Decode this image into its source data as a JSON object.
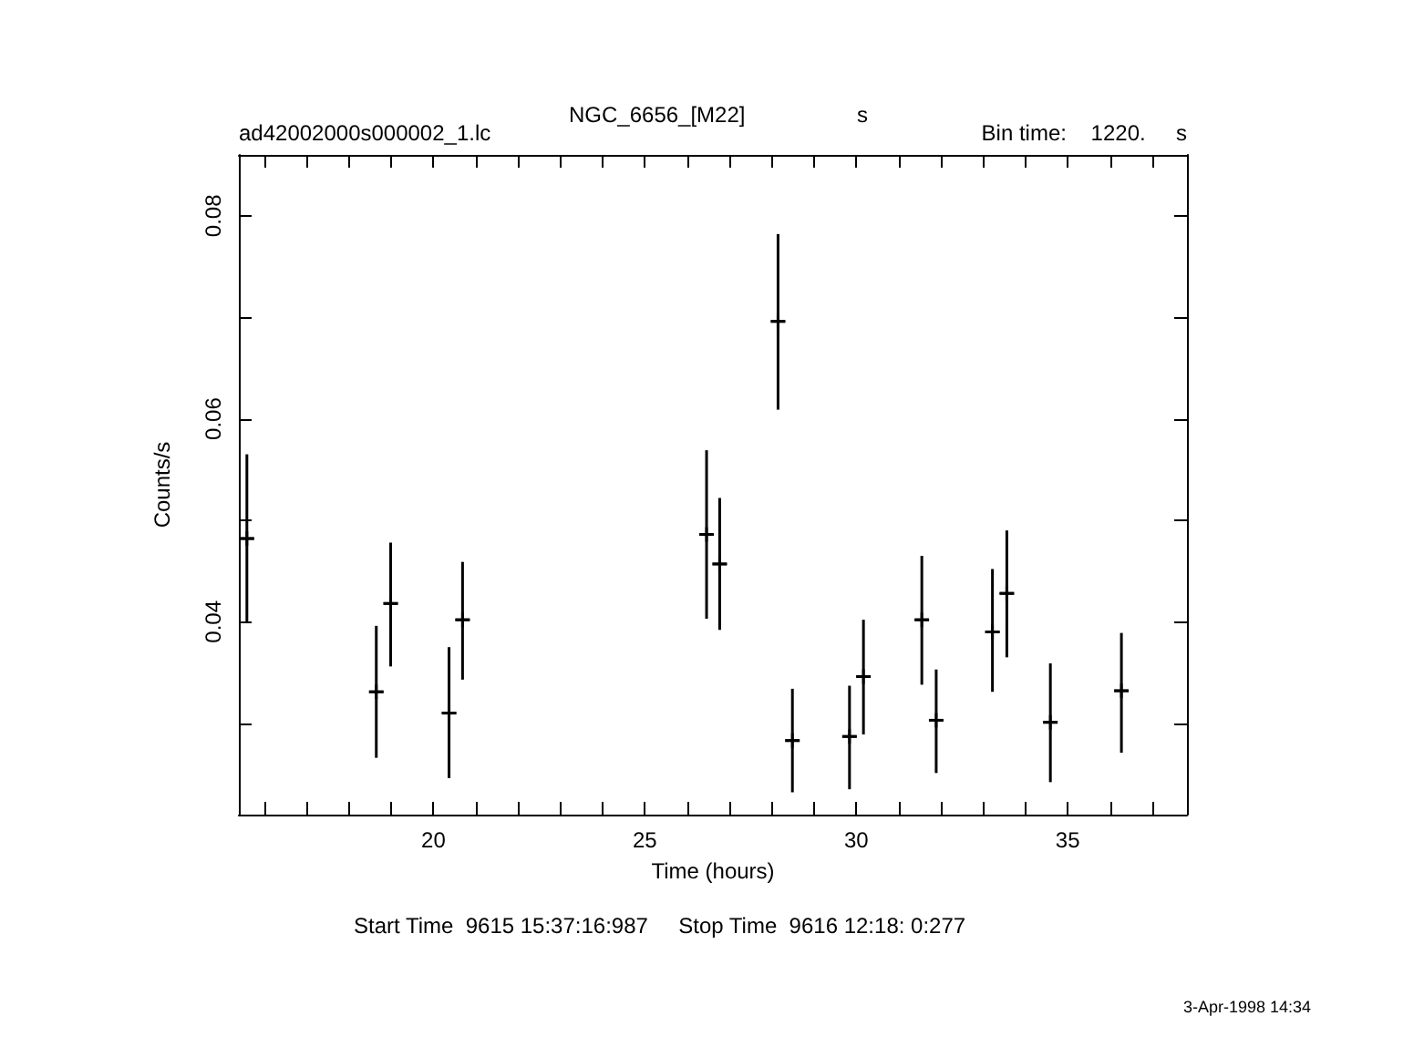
{
  "chart_data": {
    "type": "scatter",
    "title": "NGC_6656_[M22]",
    "xlabel": "Time (hours)",
    "ylabel": "Counts/s",
    "annotations": [
      "s",
      "ad42002000s000002_1.lc",
      "Bin time:    1220.     s",
      "Start Time  9615 15:37:16:987     Stop Time  9616 12:18: 0:277",
      "3-Apr-1998 14:34"
    ],
    "marker": "cross",
    "grid": false,
    "color": "#000000",
    "x": [
      15.59,
      18.65,
      18.99,
      20.37,
      20.69,
      26.46,
      26.77,
      28.15,
      28.49,
      29.84,
      30.17,
      31.55,
      31.89,
      33.22,
      33.56,
      34.59,
      36.27
    ],
    "values": [
      0.0482,
      0.0331,
      0.0418,
      0.031,
      0.0402,
      0.0486,
      0.0457,
      0.0696,
      0.0283,
      0.0287,
      0.0346,
      0.0402,
      0.0303,
      0.039,
      0.0428,
      0.0301,
      0.0332
    ],
    "errors": [
      [
        0.04,
        0.0565
      ],
      [
        0.0266,
        0.0396
      ],
      [
        0.0356,
        0.0478
      ],
      [
        0.0246,
        0.0375
      ],
      [
        0.0343,
        0.0459
      ],
      [
        0.0403,
        0.0569
      ],
      [
        0.0392,
        0.0522
      ],
      [
        0.0609,
        0.0782
      ],
      [
        0.0232,
        0.0334
      ],
      [
        0.0235,
        0.0337
      ],
      [
        0.0289,
        0.0402
      ],
      [
        0.0338,
        0.0465
      ],
      [
        0.0251,
        0.0353
      ],
      [
        0.0331,
        0.0452
      ],
      [
        0.0365,
        0.049
      ],
      [
        0.0242,
        0.0359
      ],
      [
        0.0271,
        0.0389
      ]
    ],
    "xerrors": [
      0.17,
      0.17,
      0.17,
      0.17,
      0.17,
      0.17,
      0.17,
      0.17,
      0.17,
      0.17,
      0.17,
      0.17,
      0.17,
      0.17,
      0.17,
      0.17,
      0.17
    ],
    "xlim": [
      15.4,
      37.82
    ],
    "xticks": [
      {
        "value": 16,
        "label": null
      },
      {
        "value": 17,
        "label": null
      },
      {
        "value": 18,
        "label": null
      },
      {
        "value": 19,
        "label": null
      },
      20,
      {
        "value": 21,
        "label": null
      },
      {
        "value": 22,
        "label": null
      },
      {
        "value": 23,
        "label": null
      },
      {
        "value": 24,
        "label": null
      },
      25,
      {
        "value": 26,
        "label": null
      },
      {
        "value": 27,
        "label": null
      },
      {
        "value": 28,
        "label": null
      },
      {
        "value": 29,
        "label": null
      },
      30,
      {
        "value": 31,
        "label": null
      },
      {
        "value": 32,
        "label": null
      },
      {
        "value": 33,
        "label": null
      },
      {
        "value": 34,
        "label": null
      },
      35,
      {
        "value": 36,
        "label": null
      },
      {
        "value": 37,
        "label": null
      }
    ],
    "ylim": [
      0.021,
      0.086
    ],
    "yticks": [
      {
        "value": 0.03,
        "label": null
      },
      0.04,
      {
        "value": 0.05,
        "label": null
      },
      0.06,
      {
        "value": 0.07,
        "label": null
      },
      0.08
    ]
  }
}
